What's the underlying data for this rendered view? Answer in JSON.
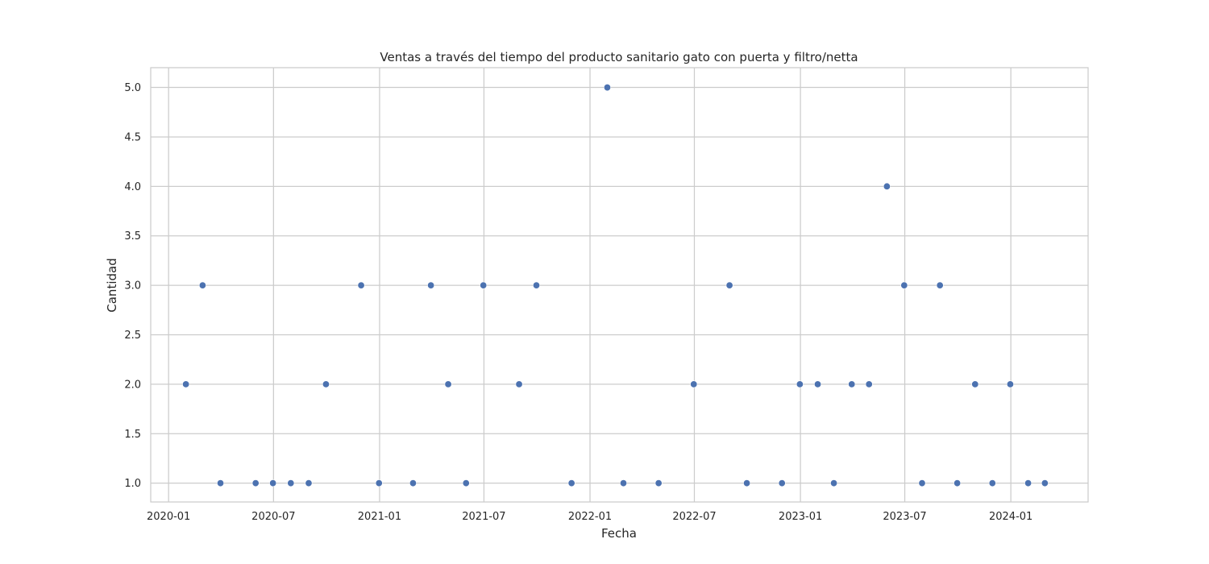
{
  "chart_data": {
    "type": "scatter",
    "title": "Ventas a través del tiempo del producto sanitario gato con puerta y filtro/netta",
    "xlabel": "Fecha",
    "ylabel": "Cantidad",
    "x_ticks": [
      "2020-01",
      "2020-07",
      "2021-01",
      "2021-07",
      "2022-01",
      "2022-07",
      "2023-01",
      "2023-07",
      "2024-01"
    ],
    "y_ticks": [
      "1.0",
      "1.5",
      "2.0",
      "2.5",
      "3.0",
      "3.5",
      "4.0",
      "4.5",
      "5.0"
    ],
    "xlim": [
      "2019-12-01",
      "2024-05-14"
    ],
    "ylim": [
      0.81,
      5.2
    ],
    "grid": true,
    "marker_color": "#4c72b0",
    "series": [
      {
        "x": [
          "2020-01-31",
          "2020-02-29",
          "2020-03-31",
          "2020-05-31",
          "2020-06-30",
          "2020-07-31",
          "2020-08-31",
          "2020-09-30",
          "2020-11-30",
          "2020-12-31",
          "2021-02-28",
          "2021-03-31",
          "2021-04-30",
          "2021-05-31",
          "2021-06-30",
          "2021-08-31",
          "2021-09-30",
          "2021-11-30",
          "2022-01-31",
          "2022-02-28",
          "2022-04-30",
          "2022-06-30",
          "2022-08-31",
          "2022-09-30",
          "2022-11-30",
          "2022-12-31",
          "2023-01-31",
          "2023-02-28",
          "2023-03-31",
          "2023-04-30",
          "2023-05-31",
          "2023-06-30",
          "2023-07-31",
          "2023-08-31",
          "2023-09-30",
          "2023-10-31",
          "2023-11-30",
          "2023-12-31",
          "2024-01-31",
          "2024-02-29"
        ],
        "y": [
          2,
          3,
          1,
          1,
          1,
          1,
          1,
          2,
          3,
          1,
          1,
          3,
          2,
          1,
          3,
          2,
          3,
          1,
          5,
          1,
          1,
          2,
          3,
          1,
          1,
          2,
          2,
          1,
          2,
          2,
          4,
          3,
          1,
          3,
          1,
          2,
          1,
          2,
          1,
          1
        ]
      }
    ]
  }
}
